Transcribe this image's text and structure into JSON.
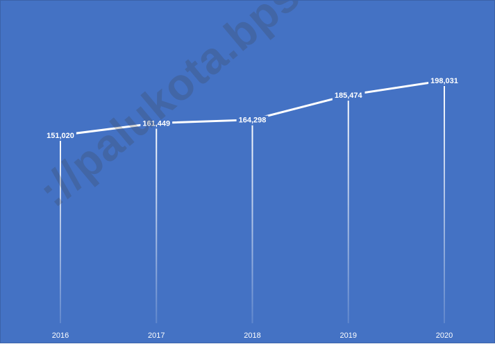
{
  "chart_data": {
    "type": "line",
    "categories": [
      "2016",
      "2017",
      "2018",
      "2019",
      "2020"
    ],
    "values": [
      151020,
      161449,
      164298,
      185474,
      198031
    ],
    "labels": [
      "151,020",
      "161,449",
      "164,298",
      "185,474",
      "198,031"
    ],
    "title": "",
    "xlabel": "",
    "ylabel": "",
    "grid": false,
    "drop_lines": true,
    "colors": {
      "background": "#4472c4",
      "line": "#ffffff",
      "text": "#ffffff"
    }
  },
  "watermark": "://palukota.bps.go.id"
}
